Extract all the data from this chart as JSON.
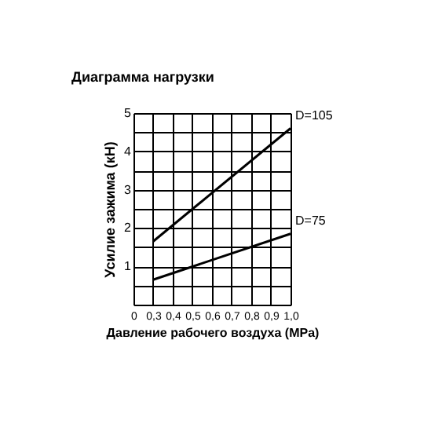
{
  "chart_data": {
    "type": "line",
    "title": "Диаграмма нагрузки",
    "xlabel": "Давление рабочего воздуха (MPa)",
    "ylabel": "Усилие зажима (кН)",
    "x": [
      0.3,
      1.0
    ],
    "series": [
      {
        "name": "D=105",
        "color": "#000000",
        "values": [
          1.65,
          4.6
        ]
      },
      {
        "name": "D=75",
        "color": "#000000",
        "values": [
          0.65,
          1.85
        ]
      }
    ],
    "xlim": [
      0.2,
      1.0
    ],
    "xticks": [
      {
        "value": 0.2,
        "label": "0"
      },
      {
        "value": 0.3,
        "label": "0,3"
      },
      {
        "value": 0.4,
        "label": "0,4"
      },
      {
        "value": 0.5,
        "label": "0,5"
      },
      {
        "value": 0.6,
        "label": "0,6"
      },
      {
        "value": 0.7,
        "label": "0,7"
      },
      {
        "value": 0.8,
        "label": "0,8"
      },
      {
        "value": 0.9,
        "label": "0,9"
      },
      {
        "value": 1.0,
        "label": "1,0"
      }
    ],
    "ylim": [
      0,
      5
    ],
    "yticks": [
      {
        "value": 0,
        "label": null
      },
      {
        "value": 0.5,
        "label": null
      },
      1,
      {
        "value": 1.5,
        "label": null
      },
      2,
      {
        "value": 2.5,
        "label": null
      },
      3,
      {
        "value": 3.5,
        "label": null
      },
      4,
      {
        "value": 4.5,
        "label": null
      },
      5
    ],
    "grid": true,
    "legend": false,
    "marker": "none",
    "line_style": "solid"
  }
}
